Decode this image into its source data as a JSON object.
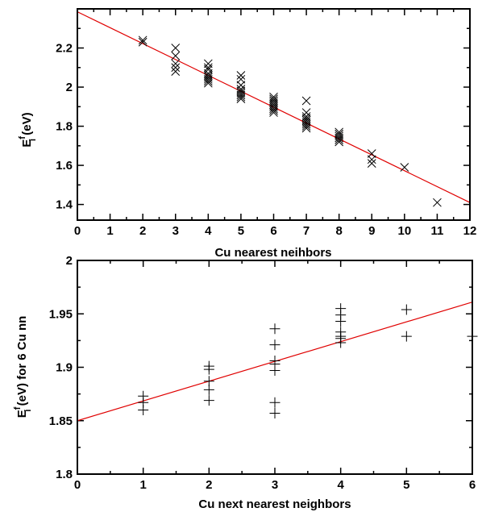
{
  "chart_data": [
    {
      "type": "scatter",
      "xlabel": "Cu nearest neihbors",
      "ylabel": {
        "main": "E",
        "sup": "f",
        "sub": "i",
        "rest": " (eV)"
      },
      "xlim": [
        0,
        12
      ],
      "ylim": [
        1.32,
        2.4
      ],
      "x_ticks": [
        0,
        1,
        2,
        3,
        4,
        5,
        6,
        7,
        8,
        9,
        10,
        11,
        12
      ],
      "y_ticks": [
        1.4,
        1.6,
        1.8,
        2,
        2.2
      ],
      "y_tick_labels": [
        "1.4",
        "1.6",
        "1.8",
        "2",
        "2.2"
      ],
      "marker": "x",
      "marker_color": "#000000",
      "fit_line": {
        "color": "#e00000",
        "x": [
          0,
          12
        ],
        "y": [
          2.385,
          1.41
        ]
      },
      "points": [
        [
          2,
          2.24
        ],
        [
          2,
          2.23
        ],
        [
          3,
          2.2
        ],
        [
          3,
          2.16
        ],
        [
          3,
          2.12
        ],
        [
          3,
          2.1
        ],
        [
          3,
          2.08
        ],
        [
          4,
          2.12
        ],
        [
          4,
          2.1
        ],
        [
          4,
          2.09
        ],
        [
          4,
          2.07
        ],
        [
          4,
          2.06
        ],
        [
          4,
          2.05
        ],
        [
          4,
          2.04
        ],
        [
          4,
          2.03
        ],
        [
          4,
          2.02
        ],
        [
          5,
          2.06
        ],
        [
          5,
          2.04
        ],
        [
          5,
          2.01
        ],
        [
          5,
          1.99
        ],
        [
          5,
          1.98
        ],
        [
          5,
          1.97
        ],
        [
          5,
          1.96
        ],
        [
          5,
          1.95
        ],
        [
          5,
          1.94
        ],
        [
          6,
          1.95
        ],
        [
          6,
          1.94
        ],
        [
          6,
          1.93
        ],
        [
          6,
          1.92
        ],
        [
          6,
          1.91
        ],
        [
          6,
          1.9
        ],
        [
          6,
          1.89
        ],
        [
          6,
          1.88
        ],
        [
          6,
          1.87
        ],
        [
          7,
          1.93
        ],
        [
          7,
          1.87
        ],
        [
          7,
          1.85
        ],
        [
          7,
          1.84
        ],
        [
          7,
          1.83
        ],
        [
          7,
          1.82
        ],
        [
          7,
          1.81
        ],
        [
          7,
          1.8
        ],
        [
          7,
          1.79
        ],
        [
          8,
          1.77
        ],
        [
          8,
          1.76
        ],
        [
          8,
          1.75
        ],
        [
          8,
          1.74
        ],
        [
          8,
          1.73
        ],
        [
          8,
          1.72
        ],
        [
          9,
          1.66
        ],
        [
          9,
          1.63
        ],
        [
          9,
          1.61
        ],
        [
          10,
          1.59
        ],
        [
          11,
          1.41
        ]
      ]
    },
    {
      "type": "scatter",
      "xlabel": "Cu next nearest neighbors",
      "ylabel": {
        "main": "E",
        "sup": "f",
        "sub": "i",
        "rest": " (eV) for 6 Cu nn"
      },
      "xlim": [
        0,
        6
      ],
      "ylim": [
        1.8,
        2
      ],
      "x_ticks": [
        0,
        1,
        2,
        3,
        4,
        5,
        6
      ],
      "y_ticks": [
        1.8,
        1.85,
        1.9,
        1.95,
        2
      ],
      "y_tick_labels": [
        "1.8",
        "1.85",
        "1.9",
        "1.95",
        "2"
      ],
      "marker": "+",
      "marker_color": "#000000",
      "fit_line": {
        "color": "#e00000",
        "x": [
          0,
          6
        ],
        "y": [
          1.85,
          1.961
        ]
      },
      "points": [
        [
          1,
          1.873
        ],
        [
          1,
          1.867
        ],
        [
          1,
          1.86
        ],
        [
          2,
          1.901
        ],
        [
          2,
          1.898
        ],
        [
          2,
          1.887
        ],
        [
          2,
          1.879
        ],
        [
          2,
          1.869
        ],
        [
          3,
          1.936
        ],
        [
          3,
          1.921
        ],
        [
          3,
          1.906
        ],
        [
          3,
          1.903
        ],
        [
          3,
          1.897
        ],
        [
          3,
          1.867
        ],
        [
          3,
          1.857
        ],
        [
          4,
          1.955
        ],
        [
          4,
          1.949
        ],
        [
          4,
          1.943
        ],
        [
          4,
          1.933
        ],
        [
          4,
          1.929
        ],
        [
          4,
          1.927
        ],
        [
          4,
          1.923
        ],
        [
          5,
          1.954
        ],
        [
          5,
          1.929
        ],
        [
          6,
          1.929
        ]
      ]
    }
  ]
}
